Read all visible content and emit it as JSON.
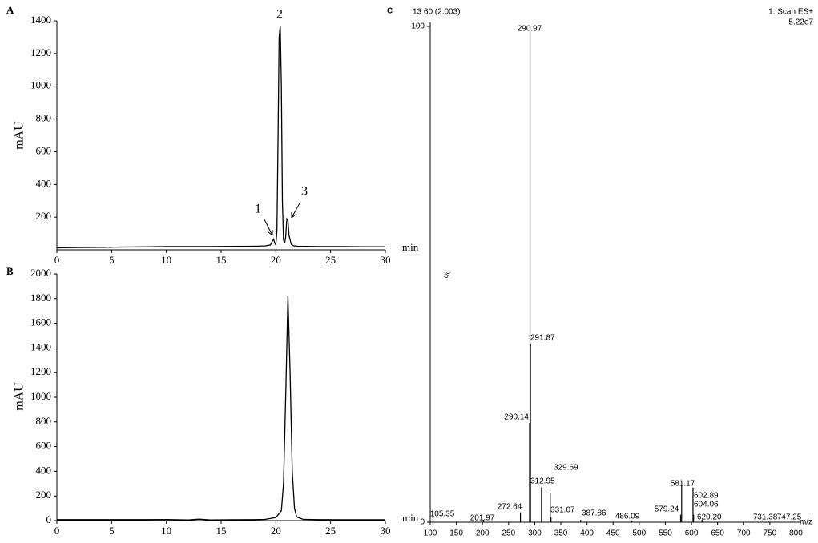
{
  "chart_data": [
    {
      "type": "line",
      "panel": "A",
      "ylabel": "mAU",
      "xlabel": "min",
      "xlim": [
        0,
        30
      ],
      "xticks": [
        0,
        5,
        10,
        15,
        20,
        25,
        30
      ],
      "ylim": [
        0,
        1400
      ],
      "yticks": [
        200,
        400,
        600,
        800,
        1000,
        1200,
        1400
      ],
      "annotations": [
        "1",
        "2",
        "3"
      ],
      "color": "#000000",
      "x": [
        0,
        2,
        4,
        6,
        8,
        10,
        12,
        14,
        16,
        18,
        19,
        19.5,
        19.7,
        19.8,
        19.9,
        20.0,
        20.1,
        20.2,
        20.3,
        20.4,
        20.5,
        20.6,
        20.7,
        20.8,
        20.9,
        21.0,
        21.1,
        21.2,
        21.4,
        21.6,
        22,
        24,
        26,
        28,
        30
      ],
      "values": [
        12,
        14,
        15,
        17,
        18,
        20,
        20,
        20,
        21,
        22,
        24,
        30,
        55,
        65,
        40,
        30,
        120,
        700,
        1300,
        1370,
        1000,
        300,
        60,
        40,
        80,
        190,
        180,
        90,
        35,
        25,
        22,
        20,
        20,
        19,
        19
      ]
    },
    {
      "type": "line",
      "panel": "B",
      "ylabel": "mAU",
      "xlabel": "min",
      "xlim": [
        0,
        30
      ],
      "xticks": [
        0,
        5,
        10,
        15,
        20,
        25,
        30
      ],
      "ylim": [
        0,
        2000
      ],
      "yticks": [
        0,
        200,
        400,
        600,
        800,
        1000,
        1200,
        1400,
        1600,
        1800,
        2000
      ],
      "color": "#000000",
      "x": [
        0,
        2,
        4,
        6,
        8,
        10,
        12,
        13,
        14,
        16,
        18,
        19,
        20,
        20.5,
        20.7,
        20.9,
        21.1,
        21.3,
        21.5,
        21.7,
        21.9,
        22.5,
        24,
        26,
        28,
        30
      ],
      "values": [
        8,
        8,
        8,
        8,
        8,
        9,
        5,
        12,
        6,
        7,
        8,
        10,
        25,
        80,
        300,
        1000,
        1820,
        1200,
        400,
        100,
        30,
        10,
        8,
        7,
        7,
        7
      ]
    },
    {
      "type": "spectrum",
      "panel": "C",
      "header": "13 60 (2.003)",
      "scan": "1: Scan ES+",
      "intensity": "5.22e7",
      "ylabel": "%",
      "xlabel": "m/z",
      "xlim": [
        100,
        810
      ],
      "xticks": [
        100,
        150,
        200,
        250,
        300,
        350,
        400,
        450,
        500,
        550,
        600,
        650,
        700,
        750,
        800
      ],
      "ylim": [
        0,
        100
      ],
      "yticks": [
        0,
        100
      ],
      "color": "#000000",
      "x": [
        105.35,
        201.97,
        272.64,
        290.14,
        290.97,
        291.87,
        312.95,
        329.69,
        331.07,
        387.86,
        486.09,
        579.24,
        581.17,
        602.89,
        604.06,
        620.2,
        731.38,
        747.25
      ],
      "x_labels": [
        "105.35",
        "201.97",
        "272.64",
        "290.14",
        "290.97",
        "291.87",
        "312.95",
        "329.69",
        "331.07",
        "387.86",
        "486.09",
        "579.24",
        "581.17",
        "602.89",
        "604.06",
        "620.20",
        "731.38",
        "747.25"
      ],
      "values": [
        1,
        0.5,
        2,
        20,
        100,
        36,
        7,
        6,
        1,
        0.5,
        0.3,
        1.5,
        7.5,
        7,
        1.5,
        0.5,
        0.3,
        0.3
      ]
    }
  ]
}
